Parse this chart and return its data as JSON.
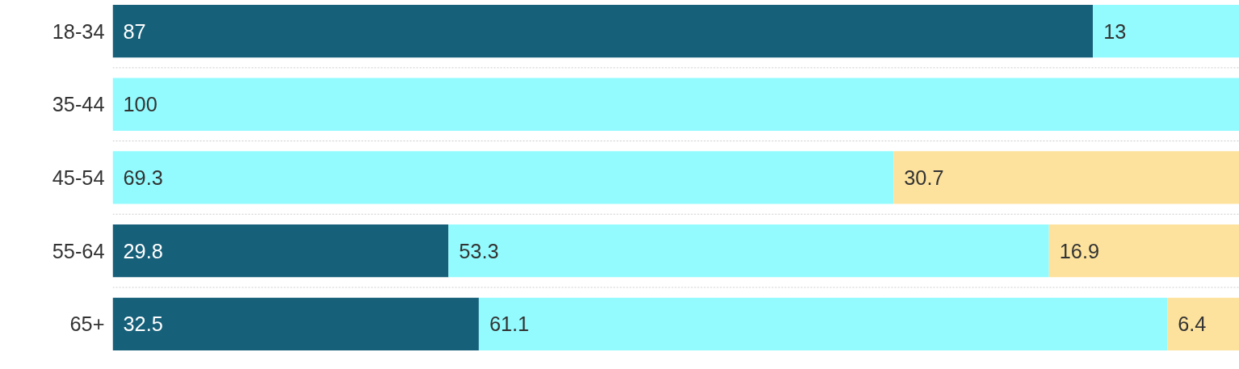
{
  "chart_data": {
    "type": "bar",
    "orientation": "horizontal",
    "stacked": true,
    "data_labels": true,
    "grid": "y",
    "categories": [
      "18-34",
      "35-44",
      "45-54",
      "55-64",
      "65+"
    ],
    "series": [
      {
        "color": "#16607a",
        "values": [
          87,
          null,
          null,
          29.8,
          32.5
        ]
      },
      {
        "color": "#93fbfe",
        "values": [
          13,
          100,
          69.3,
          53.3,
          61.1
        ]
      },
      {
        "color": "#fde29d",
        "values": [
          null,
          null,
          30.7,
          16.9,
          6.4
        ]
      }
    ]
  }
}
